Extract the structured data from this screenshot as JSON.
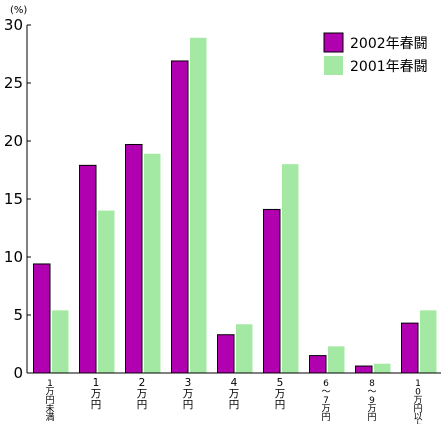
{
  "chart_data": {
    "type": "bar",
    "unit_label": "(%)",
    "ylim": [
      0,
      30
    ],
    "yticks": [
      "0",
      "5",
      "10",
      "15",
      "20",
      "25",
      "30"
    ],
    "categories": [
      "1万円未満",
      "1万円",
      "2万円",
      "3万円",
      "4万円",
      "5万円",
      "6〜7万円",
      "8〜9万円",
      "10万円以上"
    ],
    "series": [
      {
        "name": "2002年春闘",
        "color": "#b000b0",
        "values": [
          9.4,
          17.9,
          19.7,
          26.9,
          3.3,
          14.1,
          1.5,
          0.6,
          4.3
        ]
      },
      {
        "name": "2001年春闘",
        "color": "#a3e8a3",
        "values": [
          5.4,
          14.0,
          18.9,
          28.9,
          4.2,
          18.0,
          2.3,
          0.8,
          5.4
        ]
      }
    ],
    "legend_position": "top-right",
    "grid": false
  }
}
